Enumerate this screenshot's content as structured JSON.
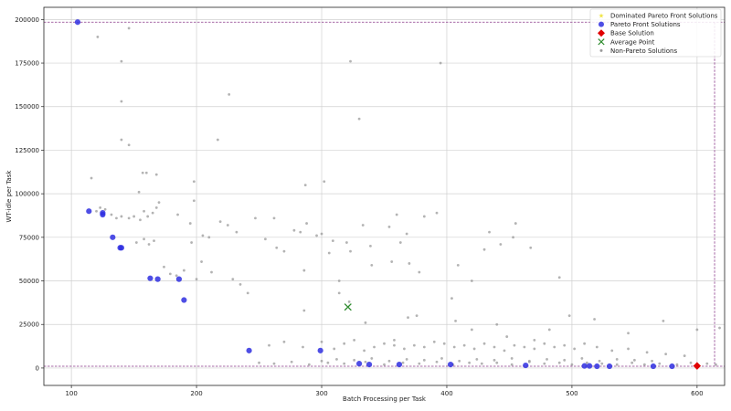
{
  "chart_data": {
    "type": "scatter",
    "xlabel": "Batch Processing per Task",
    "ylabel": "WT-idle per Task",
    "xlim": [
      78,
      622
    ],
    "ylim": [
      -10000,
      207000
    ],
    "xticks": [
      100,
      200,
      300,
      400,
      500,
      600
    ],
    "yticks": [
      0,
      25000,
      50000,
      75000,
      100000,
      125000,
      150000,
      175000,
      200000
    ],
    "grid": true,
    "legend_position": "top-right",
    "legend": [
      {
        "label": "Dominated Pareto Front Solutions",
        "marker": "star",
        "color": "#f0e442"
      },
      {
        "label": "Pareto Front Solutions",
        "marker": "circle",
        "color": "#2f2fe0"
      },
      {
        "label": "Base Solution",
        "marker": "diamond",
        "color": "#e00000"
      },
      {
        "label": "Average Point",
        "marker": "x",
        "color": "#2e8b2e"
      },
      {
        "label": "Non-Pareto Solutions",
        "marker": "dot",
        "color": "#9a9a9a"
      }
    ],
    "reference_lines": {
      "color": "#8b3a8b",
      "y_values": [
        198500,
        1000
      ],
      "x_values": [
        614
      ]
    },
    "series": [
      {
        "name": "Pareto Front Solutions",
        "color": "#2f2fe0",
        "points": [
          [
            105,
            198500
          ],
          [
            114,
            90000
          ],
          [
            125,
            89000
          ],
          [
            125,
            88000
          ],
          [
            133,
            75000
          ],
          [
            139,
            69000
          ],
          [
            140,
            69000
          ],
          [
            163,
            51500
          ],
          [
            169,
            51000
          ],
          [
            186,
            51000
          ],
          [
            190,
            39000
          ],
          [
            242,
            10000
          ],
          [
            299,
            10000
          ],
          [
            330,
            2500
          ],
          [
            338,
            2000
          ],
          [
            362,
            2000
          ],
          [
            403,
            2000
          ],
          [
            463,
            1500
          ],
          [
            510,
            1200
          ],
          [
            514,
            1200
          ],
          [
            520,
            1000
          ],
          [
            530,
            1000
          ],
          [
            565,
            1000
          ],
          [
            580,
            1000
          ]
        ]
      },
      {
        "name": "Base Solution",
        "color": "#e00000",
        "points": [
          [
            600,
            1200
          ]
        ]
      },
      {
        "name": "Average Point",
        "color": "#2e8b2e",
        "points": [
          [
            321,
            35000
          ]
        ]
      },
      {
        "name": "Non-Pareto Solutions",
        "color": "#9a9a9a",
        "points": [
          [
            121,
            190000
          ],
          [
            146,
            195000
          ],
          [
            140,
            176000
          ],
          [
            140,
            153000
          ],
          [
            140,
            131000
          ],
          [
            146,
            128000
          ],
          [
            226,
            157000
          ],
          [
            217,
            131000
          ],
          [
            330,
            143000
          ],
          [
            323,
            176000
          ],
          [
            395,
            175000
          ],
          [
            116,
            109000
          ],
          [
            120,
            90000
          ],
          [
            123,
            92000
          ],
          [
            127,
            91000
          ],
          [
            132,
            88000
          ],
          [
            136,
            86000
          ],
          [
            140,
            87000
          ],
          [
            146,
            86000
          ],
          [
            154,
            101000
          ],
          [
            157,
            112000
          ],
          [
            160,
            112000
          ],
          [
            168,
            111000
          ],
          [
            198,
            107000
          ],
          [
            287,
            105000
          ],
          [
            302,
            107000
          ],
          [
            150,
            87000
          ],
          [
            155,
            85000
          ],
          [
            158,
            90000
          ],
          [
            161,
            87000
          ],
          [
            165,
            89000
          ],
          [
            168,
            92000
          ],
          [
            170,
            95000
          ],
          [
            185,
            88000
          ],
          [
            195,
            83000
          ],
          [
            198,
            96000
          ],
          [
            205,
            76000
          ],
          [
            210,
            75000
          ],
          [
            219,
            84000
          ],
          [
            225,
            82000
          ],
          [
            232,
            78000
          ],
          [
            247,
            86000
          ],
          [
            262,
            86000
          ],
          [
            278,
            79000
          ],
          [
            283,
            78000
          ],
          [
            288,
            83000
          ],
          [
            296,
            76000
          ],
          [
            300,
            77000
          ],
          [
            309,
            73000
          ],
          [
            320,
            72000
          ],
          [
            333,
            82000
          ],
          [
            339,
            70000
          ],
          [
            354,
            81000
          ],
          [
            360,
            88000
          ],
          [
            368,
            77000
          ],
          [
            382,
            87000
          ],
          [
            392,
            89000
          ],
          [
            434,
            78000
          ],
          [
            443,
            71000
          ],
          [
            455,
            83000
          ],
          [
            467,
            69000
          ],
          [
            453,
            75000
          ],
          [
            152,
            72000
          ],
          [
            158,
            74000
          ],
          [
            162,
            71000
          ],
          [
            166,
            73000
          ],
          [
            174,
            58000
          ],
          [
            179,
            54000
          ],
          [
            184,
            53000
          ],
          [
            190,
            56000
          ],
          [
            196,
            72000
          ],
          [
            200,
            51000
          ],
          [
            204,
            61000
          ],
          [
            212,
            55000
          ],
          [
            229,
            51000
          ],
          [
            235,
            48000
          ],
          [
            241,
            43000
          ],
          [
            255,
            74000
          ],
          [
            264,
            69000
          ],
          [
            270,
            67000
          ],
          [
            286,
            56000
          ],
          [
            306,
            66000
          ],
          [
            314,
            50000
          ],
          [
            323,
            67000
          ],
          [
            340,
            59000
          ],
          [
            356,
            61000
          ],
          [
            363,
            72000
          ],
          [
            370,
            60000
          ],
          [
            378,
            55000
          ],
          [
            409,
            59000
          ],
          [
            420,
            50000
          ],
          [
            430,
            68000
          ],
          [
            490,
            52000
          ],
          [
            286,
            33000
          ],
          [
            314,
            43000
          ],
          [
            322,
            38000
          ],
          [
            335,
            26000
          ],
          [
            358,
            16000
          ],
          [
            369,
            29000
          ],
          [
            376,
            30000
          ],
          [
            404,
            40000
          ],
          [
            407,
            27000
          ],
          [
            420,
            22000
          ],
          [
            440,
            25000
          ],
          [
            448,
            18000
          ],
          [
            470,
            16000
          ],
          [
            482,
            22000
          ],
          [
            498,
            30000
          ],
          [
            518,
            28000
          ],
          [
            545,
            20000
          ],
          [
            573,
            27000
          ],
          [
            600,
            22000
          ],
          [
            618,
            23000
          ],
          [
            258,
            13000
          ],
          [
            270,
            15000
          ],
          [
            285,
            12000
          ],
          [
            300,
            15000
          ],
          [
            310,
            11000
          ],
          [
            318,
            14000
          ],
          [
            326,
            16000
          ],
          [
            334,
            10000
          ],
          [
            342,
            12000
          ],
          [
            350,
            14000
          ],
          [
            358,
            13000
          ],
          [
            366,
            11000
          ],
          [
            374,
            13000
          ],
          [
            382,
            12000
          ],
          [
            390,
            15000
          ],
          [
            398,
            14000
          ],
          [
            406,
            12000
          ],
          [
            414,
            13000
          ],
          [
            422,
            11000
          ],
          [
            430,
            14000
          ],
          [
            438,
            12000
          ],
          [
            446,
            10000
          ],
          [
            454,
            13000
          ],
          [
            462,
            12000
          ],
          [
            470,
            11000
          ],
          [
            478,
            14000
          ],
          [
            486,
            12000
          ],
          [
            494,
            13000
          ],
          [
            502,
            11000
          ],
          [
            510,
            14000
          ],
          [
            520,
            12000
          ],
          [
            532,
            10000
          ],
          [
            545,
            11000
          ],
          [
            560,
            9000
          ],
          [
            575,
            8000
          ],
          [
            590,
            7000
          ],
          [
            250,
            3000
          ],
          [
            262,
            2500
          ],
          [
            276,
            3500
          ],
          [
            290,
            2000
          ],
          [
            305,
            3000
          ],
          [
            318,
            2500
          ],
          [
            335,
            3500
          ],
          [
            350,
            2000
          ],
          [
            365,
            3000
          ],
          [
            378,
            2500
          ],
          [
            392,
            3500
          ],
          [
            405,
            2000
          ],
          [
            418,
            3000
          ],
          [
            428,
            2500
          ],
          [
            440,
            3000
          ],
          [
            452,
            2000
          ],
          [
            466,
            3500
          ],
          [
            478,
            2500
          ],
          [
            490,
            3000
          ],
          [
            500,
            2000
          ],
          [
            512,
            3000
          ],
          [
            524,
            2500
          ],
          [
            536,
            2000
          ],
          [
            548,
            3000
          ],
          [
            558,
            2000
          ],
          [
            570,
            2500
          ],
          [
            584,
            2000
          ],
          [
            595,
            3000
          ],
          [
            608,
            2500
          ],
          [
            615,
            2000
          ],
          [
            300,
            4000
          ],
          [
            312,
            5000
          ],
          [
            326,
            4500
          ],
          [
            340,
            5500
          ],
          [
            354,
            4000
          ],
          [
            368,
            5000
          ],
          [
            382,
            4500
          ],
          [
            396,
            5500
          ],
          [
            410,
            4000
          ],
          [
            424,
            5000
          ],
          [
            438,
            4500
          ],
          [
            452,
            5500
          ],
          [
            466,
            4000
          ],
          [
            480,
            5000
          ],
          [
            494,
            4500
          ],
          [
            508,
            5500
          ],
          [
            522,
            4000
          ],
          [
            536,
            5000
          ],
          [
            550,
            4500
          ],
          [
            564,
            4000
          ]
        ]
      }
    ]
  }
}
